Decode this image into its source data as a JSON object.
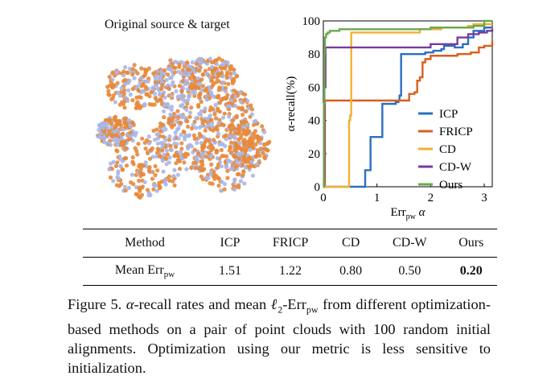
{
  "left_panel": {
    "title": "Original source & target"
  },
  "chart_data": {
    "type": "line",
    "xlabel": "Err",
    "xlabel_sub": "pw",
    "xlabel_suffix": "α",
    "ylabel": "α-recall(%)",
    "xlim": [
      0,
      3.15
    ],
    "ylim": [
      0,
      100
    ],
    "xticks": [
      0,
      1,
      2,
      3
    ],
    "yticks": [
      0,
      20,
      40,
      60,
      80,
      100
    ],
    "legend_position": "right",
    "series": [
      {
        "name": "ICP",
        "color": "#2a6fbf",
        "x": [
          0.0,
          0.75,
          0.78,
          0.85,
          0.88,
          1.1,
          1.2,
          1.35,
          1.4,
          1.42,
          1.45,
          1.7,
          1.9,
          2.05,
          2.2,
          2.25,
          2.3,
          2.45,
          2.6,
          2.7,
          2.8,
          3.0,
          3.15
        ],
        "y": [
          0,
          0,
          10,
          10,
          30,
          50,
          50,
          51,
          52,
          55,
          80,
          80,
          81,
          82,
          83,
          85,
          85,
          84,
          86,
          90,
          94,
          96,
          96
        ]
      },
      {
        "name": "FRICP",
        "color": "#d95f1e",
        "x": [
          0.0,
          0.02,
          0.03,
          1.55,
          1.6,
          1.7,
          1.75,
          1.8,
          1.85,
          1.9,
          2.0,
          2.2,
          2.5,
          2.75,
          2.9,
          3.0,
          3.1,
          3.15
        ],
        "y": [
          0,
          0,
          52,
          52,
          56,
          57,
          64,
          66,
          75,
          77,
          79,
          79,
          80,
          81,
          84,
          85,
          85,
          88
        ]
      },
      {
        "name": "CD",
        "color": "#f0b133",
        "x": [
          0.0,
          0.47,
          0.48,
          0.5,
          0.52,
          1.2,
          1.8,
          2.0,
          2.2,
          2.4,
          2.7,
          2.8,
          3.15
        ],
        "y": [
          0,
          0,
          40,
          43,
          93,
          93,
          95,
          95,
          96,
          96,
          97,
          98,
          98
        ]
      },
      {
        "name": "CD-W",
        "color": "#7a3a9c",
        "x": [
          0.0,
          0.01,
          0.02,
          0.04,
          1.6,
          2.0,
          2.5,
          2.7,
          2.9,
          3.05,
          3.15
        ],
        "y": [
          0,
          5,
          60,
          84,
          84,
          86,
          90,
          92,
          93,
          94,
          95
        ]
      },
      {
        "name": "Ours",
        "color": "#6aa84f",
        "x": [
          0.0,
          0.01,
          0.02,
          0.03,
          0.05,
          0.08,
          0.12,
          0.3,
          0.6,
          1.0,
          1.5,
          2.0,
          2.8,
          3.0,
          3.15
        ],
        "y": [
          0,
          50,
          80,
          90,
          92,
          93,
          94,
          95,
          95,
          95,
          95,
          96,
          97,
          100,
          100
        ]
      }
    ]
  },
  "table": {
    "headers": [
      "Method",
      "ICP",
      "FRICP",
      "CD",
      "CD-W",
      "Ours"
    ],
    "row": {
      "label": "Mean Err",
      "label_sub": "pw",
      "values": [
        "1.51",
        "1.22",
        "0.80",
        "0.50",
        "0.20"
      ]
    }
  },
  "caption": {
    "prefix": "Figure 5.",
    "alpha": "α",
    "part1": "-recall rates and mean",
    "l2": "ℓ",
    "l2_sub": "2",
    "err": "-Err",
    "err_sub": "pw",
    "part2": "from different optimization-based methods on a pair of point clouds with 100 random initial alignments. Optimization using our metric is less sensitive to initialization."
  }
}
